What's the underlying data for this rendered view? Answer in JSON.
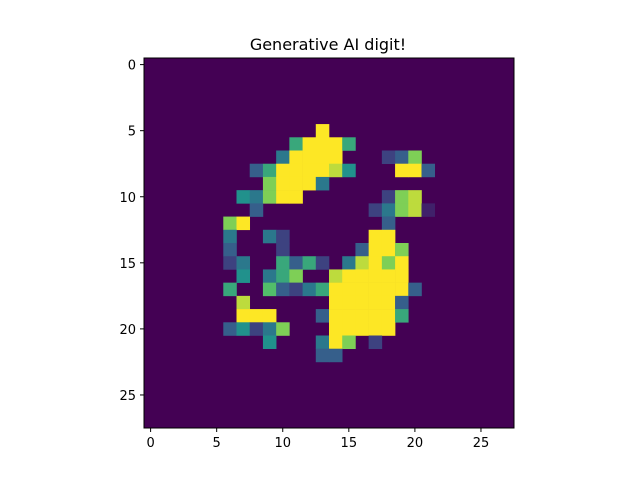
{
  "chart_data": {
    "type": "heatmap",
    "title": "Generative AI digit!",
    "xlabel": "",
    "ylabel": "",
    "xlim": [
      -0.5,
      27.5
    ],
    "ylim": [
      27.5,
      -0.5
    ],
    "xticks": [
      0,
      5,
      10,
      15,
      20,
      25
    ],
    "yticks": [
      0,
      5,
      10,
      15,
      20,
      25
    ],
    "xtick_labels": [
      "0",
      "5",
      "10",
      "15",
      "20",
      "25"
    ],
    "ytick_labels": [
      "0",
      "5",
      "10",
      "15",
      "20",
      "25"
    ],
    "colormap": "viridis",
    "vmin": 0,
    "vmax": 1,
    "grid": false,
    "rows": 28,
    "cols": 28,
    "nonzero_cells": [
      [
        5,
        13,
        1.0
      ],
      [
        6,
        11,
        0.6
      ],
      [
        6,
        12,
        1.0
      ],
      [
        6,
        13,
        1.0
      ],
      [
        6,
        14,
        1.0
      ],
      [
        6,
        15,
        0.6
      ],
      [
        7,
        10,
        0.4
      ],
      [
        7,
        11,
        1.0
      ],
      [
        7,
        12,
        1.0
      ],
      [
        7,
        13,
        1.0
      ],
      [
        7,
        14,
        1.0
      ],
      [
        7,
        18,
        0.2
      ],
      [
        7,
        19,
        0.3
      ],
      [
        7,
        20,
        0.8
      ],
      [
        8,
        8,
        0.3
      ],
      [
        8,
        9,
        0.6
      ],
      [
        8,
        10,
        1.0
      ],
      [
        8,
        11,
        1.0
      ],
      [
        8,
        12,
        1.0
      ],
      [
        8,
        13,
        1.0
      ],
      [
        8,
        14,
        0.9
      ],
      [
        8,
        15,
        0.5
      ],
      [
        8,
        19,
        1.0
      ],
      [
        8,
        20,
        1.0
      ],
      [
        8,
        21,
        0.3
      ],
      [
        9,
        9,
        0.8
      ],
      [
        9,
        10,
        1.0
      ],
      [
        9,
        11,
        1.0
      ],
      [
        9,
        12,
        1.0
      ],
      [
        9,
        13,
        0.4
      ],
      [
        10,
        7,
        0.5
      ],
      [
        10,
        8,
        0.4
      ],
      [
        10,
        9,
        0.8
      ],
      [
        10,
        10,
        1.0
      ],
      [
        10,
        11,
        1.0
      ],
      [
        10,
        18,
        0.2
      ],
      [
        10,
        19,
        0.8
      ],
      [
        10,
        20,
        0.9
      ],
      [
        11,
        8,
        0.3
      ],
      [
        11,
        17,
        0.2
      ],
      [
        11,
        18,
        0.4
      ],
      [
        11,
        19,
        0.8
      ],
      [
        11,
        20,
        0.9
      ],
      [
        11,
        21,
        0.1
      ],
      [
        12,
        6,
        0.8
      ],
      [
        12,
        7,
        1.0
      ],
      [
        12,
        18,
        0.3
      ],
      [
        13,
        6,
        0.4
      ],
      [
        13,
        9,
        0.4
      ],
      [
        13,
        10,
        0.2
      ],
      [
        13,
        17,
        1.0
      ],
      [
        13,
        18,
        1.0
      ],
      [
        14,
        6,
        0.3
      ],
      [
        14,
        10,
        0.2
      ],
      [
        14,
        16,
        0.3
      ],
      [
        14,
        17,
        1.0
      ],
      [
        14,
        18,
        1.0
      ],
      [
        14,
        19,
        0.8
      ],
      [
        15,
        6,
        0.2
      ],
      [
        15,
        7,
        0.4
      ],
      [
        15,
        10,
        0.6
      ],
      [
        15,
        11,
        0.3
      ],
      [
        15,
        12,
        0.6
      ],
      [
        15,
        13,
        0.2
      ],
      [
        15,
        15,
        0.4
      ],
      [
        15,
        16,
        0.9
      ],
      [
        15,
        17,
        1.0
      ],
      [
        15,
        18,
        0.8
      ],
      [
        15,
        19,
        1.0
      ],
      [
        16,
        7,
        0.5
      ],
      [
        16,
        9,
        0.4
      ],
      [
        16,
        10,
        0.6
      ],
      [
        16,
        11,
        0.8
      ],
      [
        16,
        14,
        0.9
      ],
      [
        16,
        15,
        1.0
      ],
      [
        16,
        16,
        1.0
      ],
      [
        16,
        17,
        1.0
      ],
      [
        16,
        18,
        1.0
      ],
      [
        16,
        19,
        1.0
      ],
      [
        17,
        6,
        0.6
      ],
      [
        17,
        9,
        0.7
      ],
      [
        17,
        10,
        0.3
      ],
      [
        17,
        11,
        0.2
      ],
      [
        17,
        12,
        0.4
      ],
      [
        17,
        13,
        0.6
      ],
      [
        17,
        14,
        1.0
      ],
      [
        17,
        15,
        1.0
      ],
      [
        17,
        16,
        1.0
      ],
      [
        17,
        17,
        1.0
      ],
      [
        17,
        18,
        1.0
      ],
      [
        17,
        19,
        1.0
      ],
      [
        17,
        20,
        0.3
      ],
      [
        18,
        7,
        0.9
      ],
      [
        18,
        14,
        1.0
      ],
      [
        18,
        15,
        1.0
      ],
      [
        18,
        16,
        1.0
      ],
      [
        18,
        17,
        1.0
      ],
      [
        18,
        18,
        1.0
      ],
      [
        18,
        19,
        0.3
      ],
      [
        19,
        7,
        1.0
      ],
      [
        19,
        8,
        1.0
      ],
      [
        19,
        9,
        1.0
      ],
      [
        19,
        13,
        0.3
      ],
      [
        19,
        14,
        1.0
      ],
      [
        19,
        15,
        1.0
      ],
      [
        19,
        16,
        1.0
      ],
      [
        19,
        17,
        1.0
      ],
      [
        19,
        18,
        1.0
      ],
      [
        19,
        19,
        0.6
      ],
      [
        20,
        6,
        0.3
      ],
      [
        20,
        7,
        0.5
      ],
      [
        20,
        8,
        0.2
      ],
      [
        20,
        9,
        0.4
      ],
      [
        20,
        10,
        0.8
      ],
      [
        20,
        14,
        1.0
      ],
      [
        20,
        15,
        1.0
      ],
      [
        20,
        16,
        1.0
      ],
      [
        20,
        17,
        1.0
      ],
      [
        20,
        18,
        1.0
      ],
      [
        21,
        9,
        0.5
      ],
      [
        21,
        13,
        0.4
      ],
      [
        21,
        14,
        1.0
      ],
      [
        21,
        15,
        0.8
      ],
      [
        21,
        17,
        0.2
      ],
      [
        22,
        13,
        0.3
      ],
      [
        22,
        14,
        0.3
      ]
    ]
  }
}
